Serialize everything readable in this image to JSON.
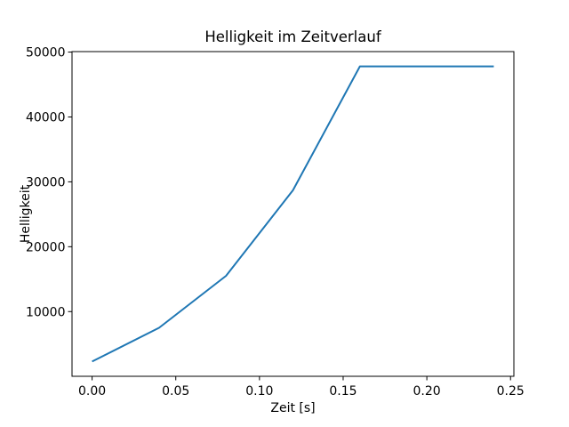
{
  "chart_data": {
    "type": "line",
    "title": "Helligkeit im Zeitverlauf",
    "xlabel": "Zeit [s]",
    "ylabel": "Helligkeit",
    "x": [
      0.0,
      0.04,
      0.08,
      0.12,
      0.16,
      0.2,
      0.24
    ],
    "y": [
      2300,
      7500,
      15500,
      28700,
      47800,
      47800,
      47800
    ],
    "line_color": "#1f77b4",
    "xlim": [
      -0.012,
      0.252
    ],
    "ylim": [
      25,
      50075
    ],
    "xticks": [
      0.0,
      0.05,
      0.1,
      0.15,
      0.2,
      0.25
    ],
    "xtick_labels": [
      "0.00",
      "0.05",
      "0.10",
      "0.15",
      "0.20",
      "0.25"
    ],
    "yticks": [
      10000,
      20000,
      30000,
      40000,
      50000
    ],
    "ytick_labels": [
      "10000",
      "20000",
      "30000",
      "40000",
      "50000"
    ],
    "grid": false,
    "legend": false,
    "background_color": "#ffffff",
    "text_color": "#000000"
  }
}
